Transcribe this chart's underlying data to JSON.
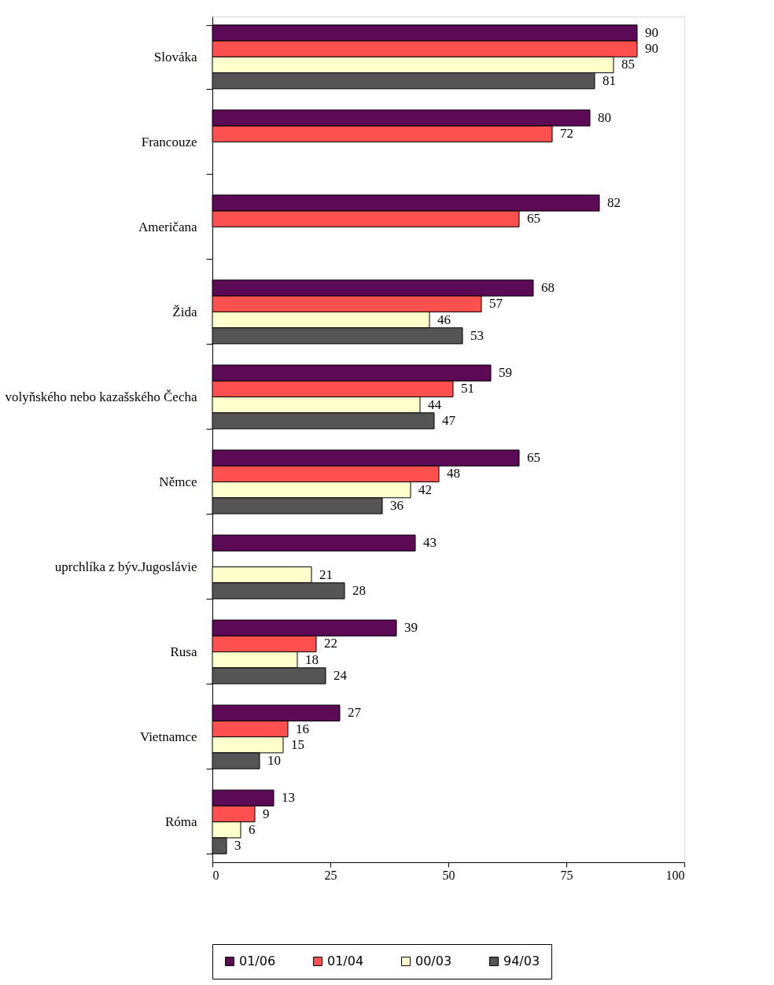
{
  "chart_data": {
    "type": "bar",
    "orientation": "horizontal",
    "categories": [
      "Slováka",
      "Francouze",
      "Američana",
      "Žida",
      "volyňského nebo kazašského Čecha",
      "Němce",
      "uprchlíka z býv.Jugoslávie",
      "Rusa",
      "Vietnamce",
      "Róma"
    ],
    "series": [
      {
        "name": "01/06",
        "color": "#5c0a55",
        "values": [
          90,
          80,
          82,
          68,
          59,
          65,
          43,
          39,
          27,
          13
        ]
      },
      {
        "name": "01/04",
        "color": "#ff5050",
        "values": [
          90,
          72,
          65,
          57,
          51,
          48,
          null,
          22,
          16,
          9
        ]
      },
      {
        "name": "00/03",
        "color": "#ffffcc",
        "values": [
          85,
          null,
          null,
          46,
          44,
          42,
          21,
          18,
          15,
          6
        ]
      },
      {
        "name": "94/03",
        "color": "#555555",
        "values": [
          81,
          null,
          null,
          53,
          47,
          36,
          28,
          24,
          10,
          3
        ]
      }
    ],
    "xlim": [
      0,
      100
    ],
    "xticks": [
      0,
      25,
      50,
      75,
      100
    ],
    "data_labels": true,
    "grid": false,
    "legend": "bottom"
  }
}
